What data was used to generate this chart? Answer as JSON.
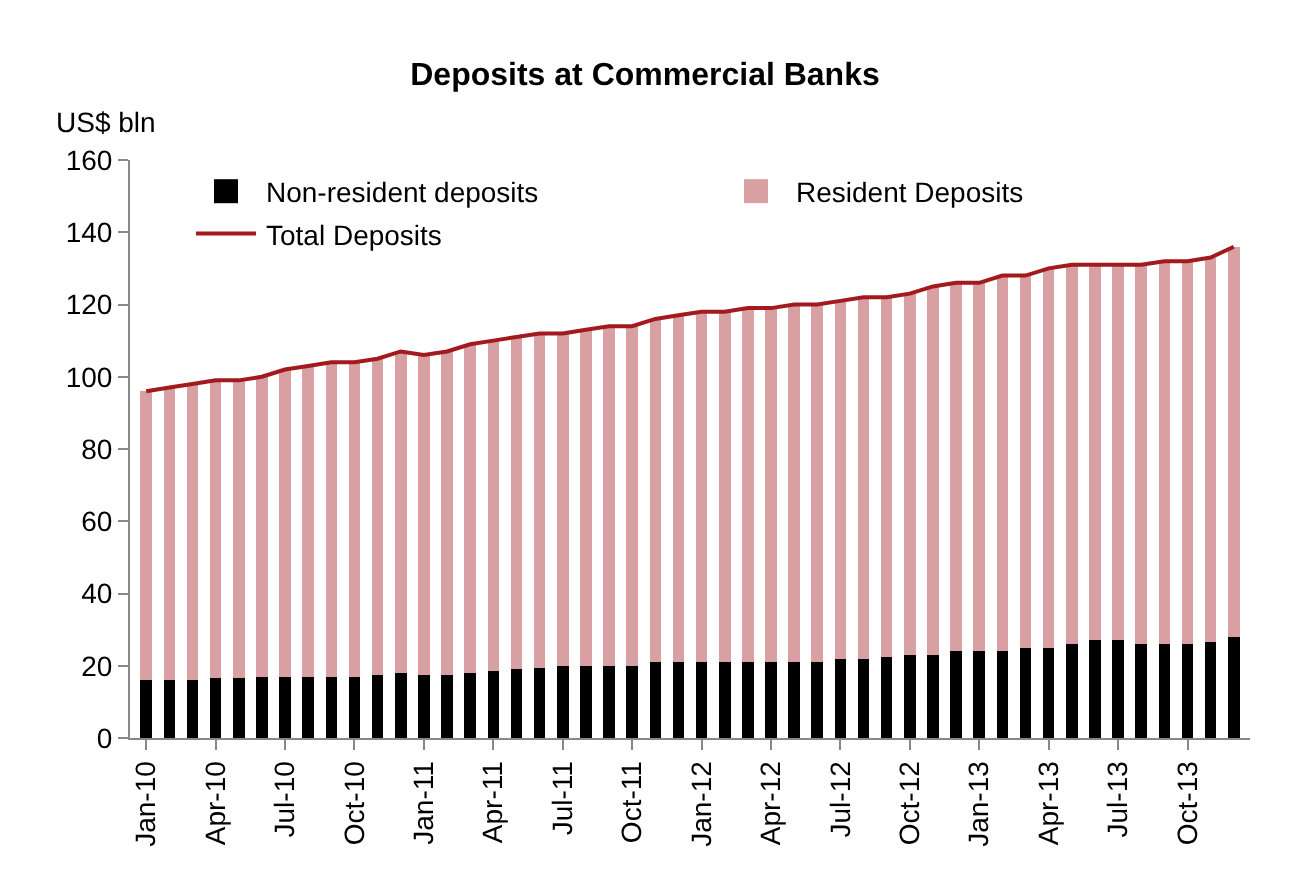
{
  "chart_data": {
    "type": "bar",
    "title": "Deposits at Commercial Banks",
    "ylabel": "US$ bln",
    "stacked": true,
    "categories": [
      "Jan-10",
      null,
      null,
      "Apr-10",
      null,
      null,
      "Jul-10",
      null,
      null,
      "Oct-10",
      null,
      null,
      "Jan-11",
      null,
      null,
      "Apr-11",
      null,
      null,
      "Jul-11",
      null,
      null,
      "Oct-11",
      null,
      null,
      "Jan-12",
      null,
      null,
      "Apr-12",
      null,
      null,
      "Jul-12",
      null,
      null,
      "Oct-12",
      null,
      null,
      "Jan-13",
      null,
      null,
      "Apr-13",
      null,
      null,
      "Jul-13",
      null,
      null,
      "Oct-13",
      null,
      null
    ],
    "series": [
      {
        "name": "Non-resident deposits",
        "color": "#000000",
        "values": [
          16,
          16,
          16,
          16.5,
          16.5,
          17,
          17,
          17,
          17,
          17,
          17.5,
          18,
          17.5,
          17.5,
          18,
          18.5,
          19,
          19.5,
          20,
          20,
          20,
          20,
          21,
          21,
          21,
          21,
          21,
          21,
          21,
          21,
          22,
          22,
          22.5,
          23,
          23,
          24,
          24,
          24,
          25,
          25,
          26,
          27,
          27,
          26,
          26,
          26,
          26.5,
          28
        ]
      },
      {
        "name": "Resident Deposits",
        "color": "#d8a0a2",
        "values": [
          80,
          81,
          82,
          82.5,
          82.5,
          83,
          85,
          86,
          87,
          87,
          87.5,
          89,
          88.5,
          89.5,
          91,
          91.5,
          92,
          92.5,
          92,
          93,
          94,
          94,
          95,
          96,
          97,
          97,
          98,
          98,
          99,
          99,
          99,
          100,
          99.5,
          100,
          102,
          102,
          102,
          104,
          103,
          105,
          105,
          104,
          104,
          105,
          106,
          106,
          106.5,
          108
        ]
      },
      {
        "name": "Total Deposits",
        "type": "line",
        "color": "#a31a1e",
        "values": [
          96,
          97,
          98,
          99,
          99,
          100,
          102,
          103,
          104,
          104,
          105,
          107,
          106,
          107,
          109,
          110,
          111,
          112,
          112,
          113,
          114,
          114,
          116,
          117,
          118,
          118,
          119,
          119,
          120,
          120,
          121,
          122,
          122,
          123,
          125,
          126,
          126,
          128,
          128,
          130,
          131,
          131,
          131,
          131,
          132,
          132,
          133,
          136
        ]
      }
    ],
    "ylim": [
      0,
      160
    ],
    "yticks": [
      0,
      20,
      40,
      60,
      80,
      100,
      120,
      140,
      160
    ],
    "legend": "top left"
  }
}
